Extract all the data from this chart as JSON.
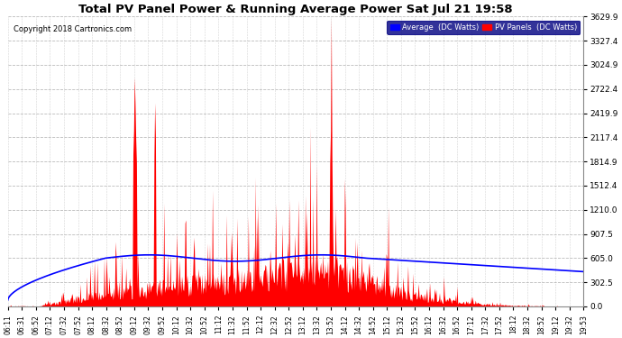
{
  "title": "Total PV Panel Power & Running Average Power Sat Jul 21 19:58",
  "copyright": "Copyright 2018 Cartronics.com",
  "legend_avg": "Average  (DC Watts)",
  "legend_pv": "PV Panels  (DC Watts)",
  "yticks": [
    0.0,
    302.5,
    605.0,
    907.5,
    1210.0,
    1512.4,
    1814.9,
    2117.4,
    2419.9,
    2722.4,
    3024.9,
    3327.4,
    3629.9
  ],
  "ylim": [
    0,
    3629.9
  ],
  "background_color": "#ffffff",
  "plot_bg_color": "#ffffff",
  "grid_color": "#aaaaaa",
  "red_color": "#ff0000",
  "blue_color": "#0000ff",
  "title_fontsize": 10,
  "xtick_labels": [
    "06:11",
    "06:31",
    "06:52",
    "07:12",
    "07:32",
    "07:52",
    "08:12",
    "08:32",
    "08:52",
    "09:12",
    "09:32",
    "09:52",
    "10:12",
    "10:32",
    "10:52",
    "11:12",
    "11:32",
    "11:52",
    "12:12",
    "12:32",
    "12:52",
    "13:12",
    "13:32",
    "13:52",
    "14:12",
    "14:32",
    "14:52",
    "15:12",
    "15:32",
    "15:52",
    "16:12",
    "16:32",
    "16:52",
    "17:12",
    "17:32",
    "17:52",
    "18:12",
    "18:32",
    "18:52",
    "19:12",
    "19:32",
    "19:53"
  ]
}
